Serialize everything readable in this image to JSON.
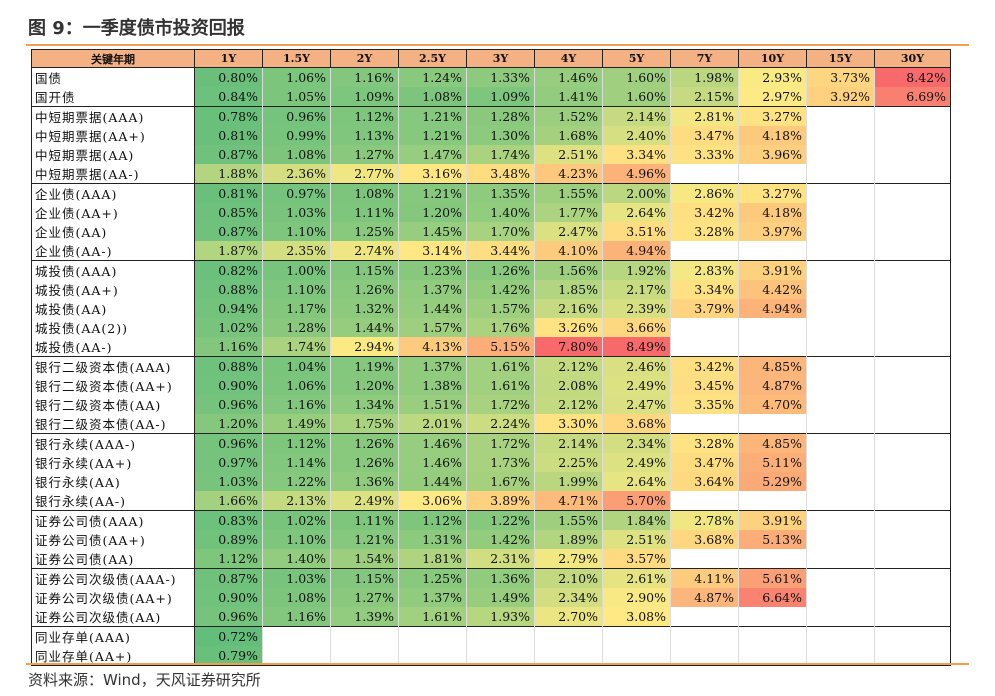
{
  "title": "图 9：一季度债市投资回报",
  "source": "资料来源：Wind，天风证券研究所",
  "table": {
    "header_label": "关键年期",
    "columns": [
      "1Y",
      "1.5Y",
      "2Y",
      "2.5Y",
      "3Y",
      "4Y",
      "5Y",
      "7Y",
      "10Y",
      "15Y",
      "30Y"
    ],
    "rows": [
      {
        "label": "国债",
        "group_start": true,
        "values": [
          "0.80%",
          "1.06%",
          "1.16%",
          "1.24%",
          "1.33%",
          "1.46%",
          "1.60%",
          "1.98%",
          "2.93%",
          "3.73%",
          "8.42%"
        ]
      },
      {
        "label": "国开债",
        "group_start": false,
        "values": [
          "0.84%",
          "1.05%",
          "1.09%",
          "1.08%",
          "1.09%",
          "1.41%",
          "1.60%",
          "2.15%",
          "2.97%",
          "3.92%",
          "6.69%"
        ]
      },
      {
        "label": "中短期票据(AAA)",
        "group_start": true,
        "values": [
          "0.78%",
          "0.96%",
          "1.12%",
          "1.21%",
          "1.28%",
          "1.52%",
          "2.14%",
          "2.81%",
          "3.27%",
          "",
          ""
        ]
      },
      {
        "label": "中短期票据(AA+)",
        "group_start": false,
        "values": [
          "0.81%",
          "0.99%",
          "1.13%",
          "1.21%",
          "1.30%",
          "1.68%",
          "2.40%",
          "3.47%",
          "4.18%",
          "",
          ""
        ]
      },
      {
        "label": "中短期票据(AA)",
        "group_start": false,
        "values": [
          "0.87%",
          "1.08%",
          "1.27%",
          "1.47%",
          "1.74%",
          "2.51%",
          "3.34%",
          "3.33%",
          "3.96%",
          "",
          ""
        ]
      },
      {
        "label": "中短期票据(AA-)",
        "group_start": false,
        "values": [
          "1.88%",
          "2.36%",
          "2.77%",
          "3.16%",
          "3.48%",
          "4.23%",
          "4.96%",
          "",
          "",
          "",
          ""
        ]
      },
      {
        "label": "企业债(AAA)",
        "group_start": true,
        "values": [
          "0.81%",
          "0.97%",
          "1.08%",
          "1.21%",
          "1.35%",
          "1.55%",
          "2.00%",
          "2.86%",
          "3.27%",
          "",
          ""
        ]
      },
      {
        "label": "企业债(AA+)",
        "group_start": false,
        "values": [
          "0.85%",
          "1.03%",
          "1.11%",
          "1.20%",
          "1.40%",
          "1.77%",
          "2.64%",
          "3.42%",
          "4.18%",
          "",
          ""
        ]
      },
      {
        "label": "企业债(AA)",
        "group_start": false,
        "values": [
          "0.87%",
          "1.10%",
          "1.25%",
          "1.45%",
          "1.70%",
          "2.47%",
          "3.51%",
          "3.28%",
          "3.97%",
          "",
          ""
        ]
      },
      {
        "label": "企业债(AA-)",
        "group_start": false,
        "values": [
          "1.87%",
          "2.35%",
          "2.74%",
          "3.14%",
          "3.44%",
          "4.10%",
          "4.94%",
          "",
          "",
          "",
          ""
        ]
      },
      {
        "label": "城投债(AAA)",
        "group_start": true,
        "values": [
          "0.82%",
          "1.00%",
          "1.15%",
          "1.23%",
          "1.26%",
          "1.56%",
          "1.92%",
          "2.83%",
          "3.91%",
          "",
          ""
        ]
      },
      {
        "label": "城投债(AA+)",
        "group_start": false,
        "values": [
          "0.88%",
          "1.10%",
          "1.26%",
          "1.37%",
          "1.42%",
          "1.85%",
          "2.17%",
          "3.34%",
          "4.42%",
          "",
          ""
        ]
      },
      {
        "label": "城投债(AA)",
        "group_start": false,
        "values": [
          "0.94%",
          "1.17%",
          "1.32%",
          "1.44%",
          "1.57%",
          "2.16%",
          "2.39%",
          "3.79%",
          "4.94%",
          "",
          ""
        ]
      },
      {
        "label": "城投债(AA(2))",
        "group_start": false,
        "values": [
          "1.02%",
          "1.28%",
          "1.44%",
          "1.57%",
          "1.76%",
          "3.26%",
          "3.66%",
          "",
          "",
          "",
          ""
        ]
      },
      {
        "label": "城投债(AA-)",
        "group_start": false,
        "values": [
          "1.16%",
          "1.74%",
          "2.94%",
          "4.13%",
          "5.15%",
          "7.80%",
          "8.49%",
          "",
          "",
          "",
          ""
        ]
      },
      {
        "label": "银行二级资本债(AAA)",
        "group_start": true,
        "values": [
          "0.88%",
          "1.04%",
          "1.19%",
          "1.37%",
          "1.61%",
          "2.12%",
          "2.46%",
          "3.42%",
          "4.85%",
          "",
          ""
        ]
      },
      {
        "label": "银行二级资本债(AA+)",
        "group_start": false,
        "values": [
          "0.90%",
          "1.06%",
          "1.20%",
          "1.38%",
          "1.61%",
          "2.08%",
          "2.49%",
          "3.45%",
          "4.87%",
          "",
          ""
        ]
      },
      {
        "label": "银行二级资本债(AA)",
        "group_start": false,
        "values": [
          "0.96%",
          "1.16%",
          "1.34%",
          "1.51%",
          "1.72%",
          "2.12%",
          "2.47%",
          "3.35%",
          "4.70%",
          "",
          ""
        ]
      },
      {
        "label": "银行二级资本债(AA-)",
        "group_start": false,
        "values": [
          "1.20%",
          "1.49%",
          "1.75%",
          "2.01%",
          "2.24%",
          "3.30%",
          "3.68%",
          "",
          "",
          "",
          ""
        ]
      },
      {
        "label": "银行永续(AAA-)",
        "group_start": true,
        "values": [
          "0.96%",
          "1.12%",
          "1.26%",
          "1.46%",
          "1.72%",
          "2.14%",
          "2.34%",
          "3.28%",
          "4.85%",
          "",
          ""
        ]
      },
      {
        "label": "银行永续(AA+)",
        "group_start": false,
        "values": [
          "0.97%",
          "1.14%",
          "1.26%",
          "1.46%",
          "1.73%",
          "2.25%",
          "2.49%",
          "3.47%",
          "5.11%",
          "",
          ""
        ]
      },
      {
        "label": "银行永续(AA)",
        "group_start": false,
        "values": [
          "1.03%",
          "1.22%",
          "1.36%",
          "1.44%",
          "1.67%",
          "1.99%",
          "2.64%",
          "3.64%",
          "5.29%",
          "",
          ""
        ]
      },
      {
        "label": "银行永续(AA-)",
        "group_start": false,
        "values": [
          "1.66%",
          "2.13%",
          "2.49%",
          "3.06%",
          "3.89%",
          "4.71%",
          "5.70%",
          "",
          "",
          "",
          ""
        ]
      },
      {
        "label": "证券公司债(AAA)",
        "group_start": true,
        "values": [
          "0.83%",
          "1.02%",
          "1.11%",
          "1.12%",
          "1.22%",
          "1.55%",
          "1.84%",
          "2.78%",
          "3.91%",
          "",
          ""
        ]
      },
      {
        "label": "证券公司债(AA+)",
        "group_start": false,
        "values": [
          "0.89%",
          "1.10%",
          "1.21%",
          "1.31%",
          "1.42%",
          "1.89%",
          "2.51%",
          "3.68%",
          "5.13%",
          "",
          ""
        ]
      },
      {
        "label": "证券公司债(AA)",
        "group_start": false,
        "values": [
          "1.12%",
          "1.40%",
          "1.54%",
          "1.81%",
          "2.31%",
          "2.79%",
          "3.57%",
          "",
          "",
          "",
          ""
        ]
      },
      {
        "label": "证券公司次级债(AAA-)",
        "group_start": true,
        "values": [
          "0.87%",
          "1.03%",
          "1.15%",
          "1.25%",
          "1.36%",
          "2.10%",
          "2.61%",
          "4.11%",
          "5.61%",
          "",
          ""
        ]
      },
      {
        "label": "证券公司次级债(AA+)",
        "group_start": false,
        "values": [
          "0.90%",
          "1.08%",
          "1.27%",
          "1.37%",
          "1.49%",
          "2.34%",
          "2.90%",
          "4.87%",
          "6.64%",
          "",
          ""
        ]
      },
      {
        "label": "证券公司次级债(AA)",
        "group_start": false,
        "values": [
          "0.96%",
          "1.16%",
          "1.39%",
          "1.61%",
          "1.93%",
          "2.70%",
          "3.08%",
          "",
          "",
          "",
          ""
        ]
      },
      {
        "label": "同业存单(AAA)",
        "group_start": true,
        "values": [
          "0.72%",
          "",
          "",
          "",
          "",
          "",
          "",
          "",
          "",
          "",
          ""
        ]
      },
      {
        "label": "同业存单(AA+)",
        "group_start": false,
        "values": [
          "0.79%",
          "",
          "",
          "",
          "",
          "",
          "",
          "",
          "",
          "",
          ""
        ]
      }
    ]
  },
  "colors": {
    "header_bg": "#f4b183",
    "accent_line": "#f0a050",
    "scale_low": "#63be7b",
    "scale_mid": "#ffeb84",
    "scale_high": "#f8696b"
  }
}
